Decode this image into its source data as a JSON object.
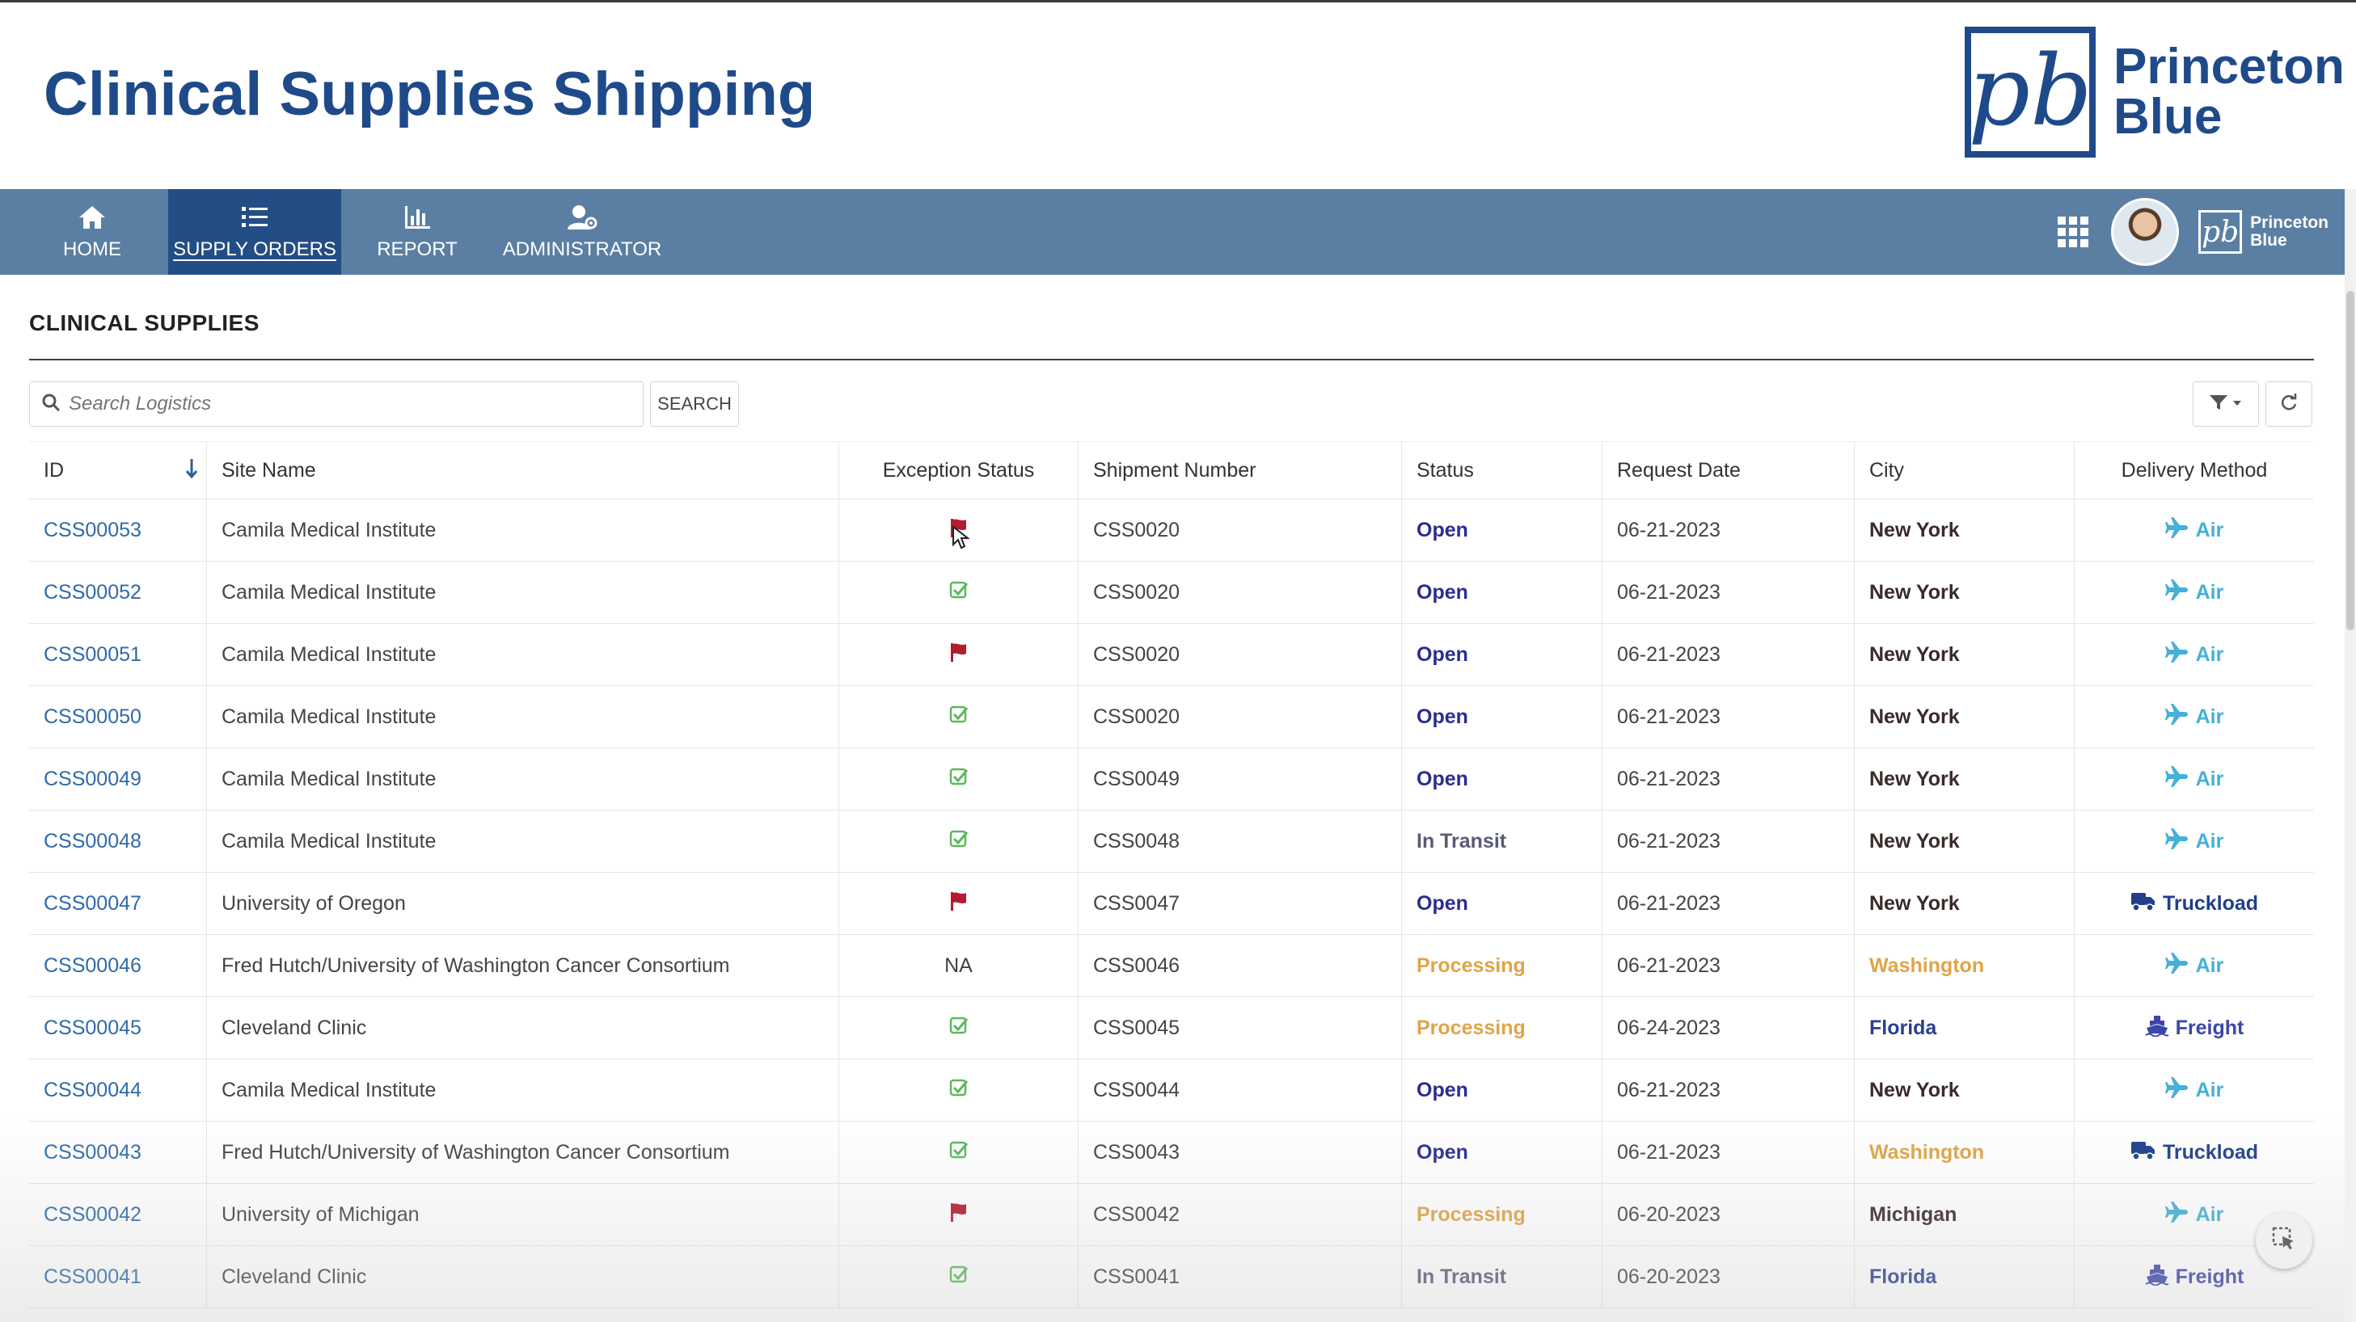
{
  "header": {
    "title": "Clinical Supplies Shipping",
    "brand": {
      "line1": "Princeton",
      "line2": "Blue",
      "mark": "pb"
    }
  },
  "nav": {
    "items": [
      {
        "label": "HOME",
        "icon": "home-icon"
      },
      {
        "label": "SUPPLY ORDERS",
        "icon": "list-icon",
        "active": true
      },
      {
        "label": "REPORT",
        "icon": "bar-chart-icon"
      },
      {
        "label": "ADMINISTRATOR",
        "icon": "user-gear-icon"
      }
    ],
    "mini_brand": {
      "mark": "pb",
      "line1": "Princeton",
      "line2": "Blue"
    }
  },
  "section": {
    "title": "CLINICAL SUPPLIES"
  },
  "search": {
    "placeholder": "Search Logistics",
    "button": "SEARCH"
  },
  "colors": {
    "nav_bg": "#5b7fa3",
    "nav_active": "#234d85",
    "brand": "#1f4a8a",
    "open": "#2c2c8f",
    "in_transit": "#5a5a7a",
    "processing": "#e0a446",
    "flag": "#b31b2f",
    "check": "#5cb85c",
    "air": "#45b0d8",
    "truck": "#1f3f8a",
    "freight": "#3b46a8"
  },
  "table": {
    "columns": [
      "ID",
      "Site Name",
      "Exception Status",
      "Shipment Number",
      "Status",
      "Request Date",
      "City",
      "Delivery Method"
    ],
    "rows": [
      {
        "id": "CSS00053",
        "site": "Camila Medical Institute",
        "exception": "flag",
        "exception_text": "",
        "shipment": "CSS0020",
        "status": "Open",
        "date": "06-21-2023",
        "city": "New York",
        "city_color": "#3a2a2a",
        "delivery": "Air"
      },
      {
        "id": "CSS00052",
        "site": "Camila Medical Institute",
        "exception": "check",
        "exception_text": "",
        "shipment": "CSS0020",
        "status": "Open",
        "date": "06-21-2023",
        "city": "New York",
        "city_color": "#3a2a2a",
        "delivery": "Air"
      },
      {
        "id": "CSS00051",
        "site": "Camila Medical Institute",
        "exception": "flag",
        "exception_text": "",
        "shipment": "CSS0020",
        "status": "Open",
        "date": "06-21-2023",
        "city": "New York",
        "city_color": "#3a2a2a",
        "delivery": "Air"
      },
      {
        "id": "CSS00050",
        "site": "Camila Medical Institute",
        "exception": "check",
        "exception_text": "",
        "shipment": "CSS0020",
        "status": "Open",
        "date": "06-21-2023",
        "city": "New York",
        "city_color": "#3a2a2a",
        "delivery": "Air"
      },
      {
        "id": "CSS00049",
        "site": "Camila Medical Institute",
        "exception": "check",
        "exception_text": "",
        "shipment": "CSS0049",
        "status": "Open",
        "date": "06-21-2023",
        "city": "New York",
        "city_color": "#3a2a2a",
        "delivery": "Air"
      },
      {
        "id": "CSS00048",
        "site": "Camila Medical Institute",
        "exception": "check",
        "exception_text": "",
        "shipment": "CSS0048",
        "status": "In Transit",
        "date": "06-21-2023",
        "city": "New York",
        "city_color": "#3a2a2a",
        "delivery": "Air"
      },
      {
        "id": "CSS00047",
        "site": "University of Oregon",
        "exception": "flag",
        "exception_text": "",
        "shipment": "CSS0047",
        "status": "Open",
        "date": "06-21-2023",
        "city": "New York",
        "city_color": "#3a2a2a",
        "delivery": "Truckload"
      },
      {
        "id": "CSS00046",
        "site": "Fred Hutch/University of Washington Cancer Consortium",
        "exception": "text",
        "exception_text": "NA",
        "shipment": "CSS0046",
        "status": "Processing",
        "date": "06-21-2023",
        "city": "Washington",
        "city_color": "#e0a446",
        "delivery": "Air"
      },
      {
        "id": "CSS00045",
        "site": "Cleveland Clinic",
        "exception": "check",
        "exception_text": "",
        "shipment": "CSS0045",
        "status": "Processing",
        "date": "06-24-2023",
        "city": "Florida",
        "city_color": "#2c3f8f",
        "delivery": "Freight"
      },
      {
        "id": "CSS00044",
        "site": "Camila Medical Institute",
        "exception": "check",
        "exception_text": "",
        "shipment": "CSS0044",
        "status": "Open",
        "date": "06-21-2023",
        "city": "New York",
        "city_color": "#3a2a2a",
        "delivery": "Air"
      },
      {
        "id": "CSS00043",
        "site": "Fred Hutch/University of Washington Cancer Consortium",
        "exception": "check",
        "exception_text": "",
        "shipment": "CSS0043",
        "status": "Open",
        "date": "06-21-2023",
        "city": "Washington",
        "city_color": "#e0a446",
        "delivery": "Truckload"
      },
      {
        "id": "CSS00042",
        "site": "University of Michigan",
        "exception": "flag",
        "exception_text": "",
        "shipment": "CSS0042",
        "status": "Processing",
        "date": "06-20-2023",
        "city": "Michigan",
        "city_color": "#3a2a2a",
        "delivery": "Air"
      },
      {
        "id": "CSS00041",
        "site": "Cleveland Clinic",
        "exception": "check",
        "exception_text": "",
        "shipment": "CSS0041",
        "status": "In Transit",
        "date": "06-20-2023",
        "city": "Florida",
        "city_color": "#2c3f8f",
        "delivery": "Freight"
      }
    ]
  }
}
